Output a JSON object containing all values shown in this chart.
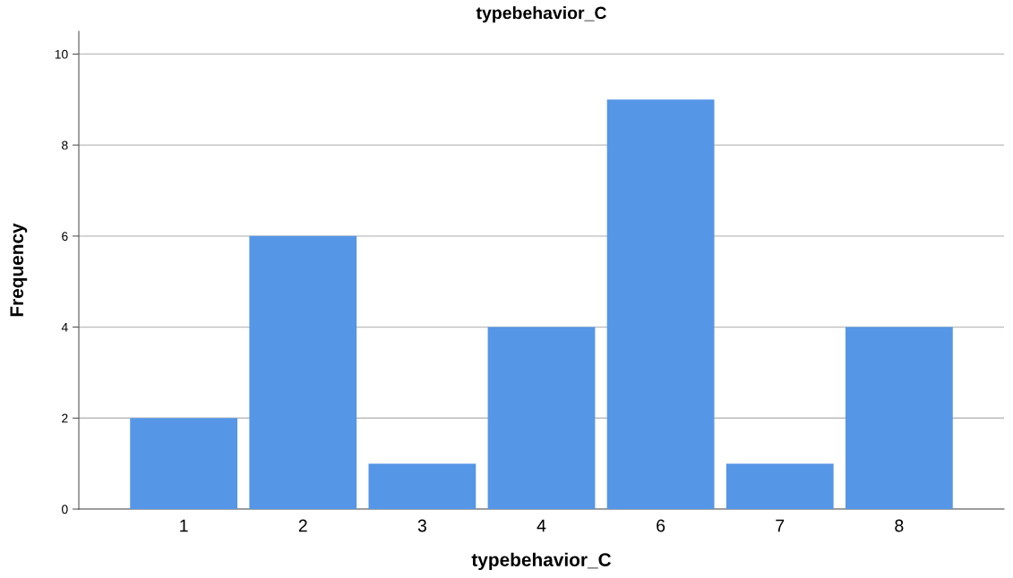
{
  "chart_data": {
    "type": "bar",
    "title": "typebehavior_C",
    "xlabel": "typebehavior_C",
    "ylabel": "Frequency",
    "categories": [
      "1",
      "2",
      "3",
      "4",
      "6",
      "7",
      "8"
    ],
    "values": [
      2,
      6,
      1,
      4,
      9,
      1,
      4
    ],
    "color": "#5596e6",
    "ylim": [
      0,
      10.5
    ],
    "yticks": [
      0,
      2,
      4,
      6,
      8,
      10
    ],
    "grid": "y",
    "legend": false
  }
}
